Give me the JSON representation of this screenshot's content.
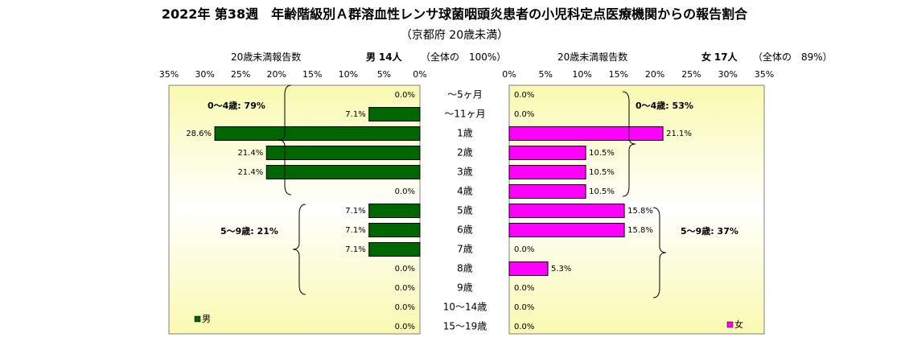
{
  "title": "2022年 第38週　年齢階級別Ａ群溶血性レンサ球菌咽頭炎患者の小児科定点医療機関からの報告割合",
  "subtitle": "（京都府 20歳未満）",
  "colors": {
    "male": "#006600",
    "female": "#ff00ff",
    "panel_edge": "#f9f9b0",
    "panel_center": "#ffffff"
  },
  "male_header": {
    "caption": "20歳未満報告数",
    "sex": "男",
    "count": "14人",
    "share": "（全体の　100%）"
  },
  "female_header": {
    "caption": "20歳未満報告数",
    "sex": "女",
    "count": "17人",
    "share": "（全体の　89%）"
  },
  "chart_data": {
    "type": "bar",
    "orientation": "horizontal-butterfly",
    "categories": [
      "～5ヶ月",
      "～11ヶ月",
      "1歳",
      "2歳",
      "3歳",
      "4歳",
      "5歳",
      "6歳",
      "7歳",
      "8歳",
      "9歳",
      "10～14歳",
      "15～19歳"
    ],
    "series": [
      {
        "name": "男",
        "values": [
          0.0,
          7.1,
          28.6,
          21.4,
          21.4,
          0.0,
          7.1,
          7.1,
          7.1,
          0.0,
          0.0,
          0.0,
          0.0
        ],
        "labels": [
          "0.0%",
          "7.1%",
          "28.6%",
          "21.4%",
          "21.4%",
          "0.0%",
          "7.1%",
          "7.1%",
          "7.1%",
          "0.0%",
          "0.0%",
          "0.0%",
          "0.0%"
        ]
      },
      {
        "name": "女",
        "values": [
          0.0,
          0.0,
          21.1,
          10.5,
          10.5,
          10.5,
          15.8,
          15.8,
          0.0,
          5.3,
          0.0,
          0.0,
          0.0
        ],
        "labels": [
          "0.0%",
          "0.0%",
          "21.1%",
          "10.5%",
          "10.5%",
          "10.5%",
          "15.8%",
          "15.8%",
          "0.0%",
          "5.3%",
          "0.0%",
          "0.0%",
          "0.0%"
        ]
      }
    ],
    "xlim": [
      0,
      35
    ],
    "male_ticks": [
      "35%",
      "30%",
      "25%",
      "20%",
      "15%",
      "10%",
      "5%",
      "0%"
    ],
    "female_ticks": [
      "0%",
      "5%",
      "10%",
      "15%",
      "20%",
      "25%",
      "30%",
      "35%"
    ],
    "annotations": {
      "male_0_4": "0～4歳: 79%",
      "male_5_9": "5～9歳: 21%",
      "female_0_4": "0～4歳: 53%",
      "female_5_9": "5～9歳: 37%"
    },
    "legend_male": "男",
    "legend_female": "女"
  }
}
